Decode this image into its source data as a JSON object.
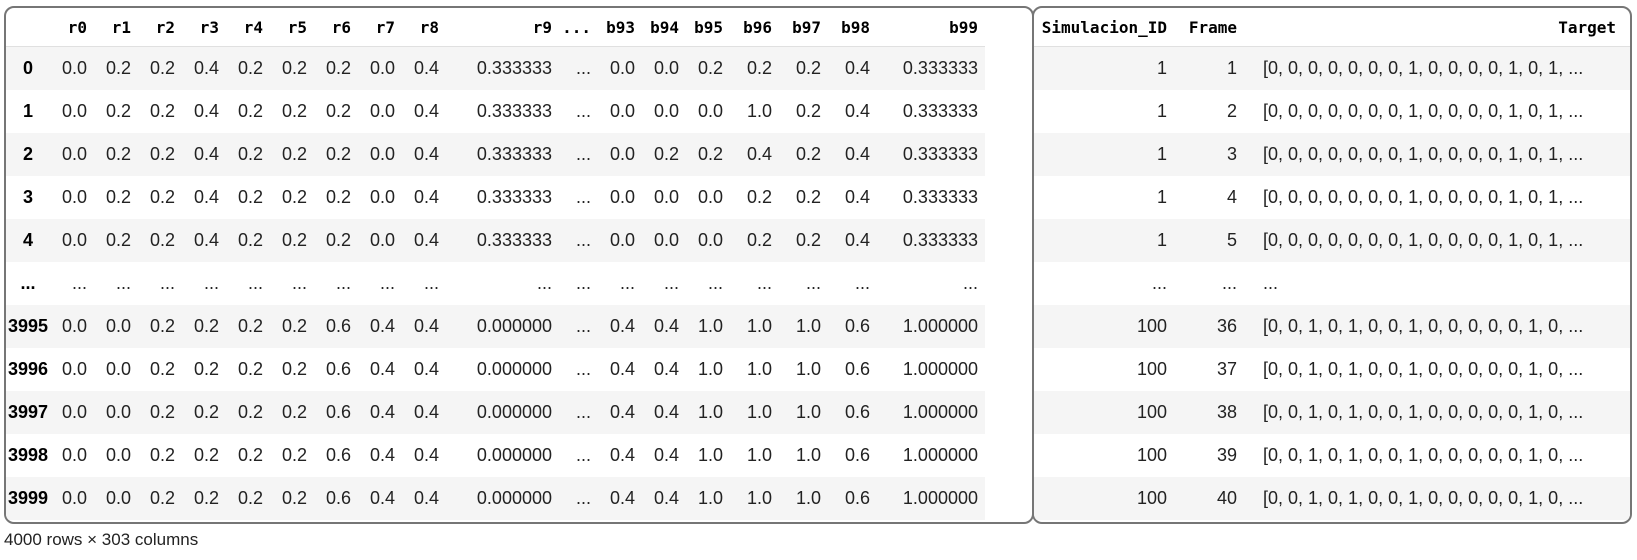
{
  "left_columns": [
    "",
    "r0",
    "r1",
    "r2",
    "r3",
    "r4",
    "r5",
    "r6",
    "r7",
    "r8",
    "r9",
    "...",
    "b93",
    "b94",
    "b95",
    "b96",
    "b97",
    "b98",
    "b99"
  ],
  "right_columns": [
    "Simulacion_ID",
    "Frame",
    "Target"
  ],
  "rows": [
    {
      "idx": "0",
      "cells": [
        "0.0",
        "0.2",
        "0.2",
        "0.4",
        "0.2",
        "0.2",
        "0.2",
        "0.0",
        "0.4",
        "0.333333",
        "...",
        "0.0",
        "0.0",
        "0.2",
        "0.2",
        "0.2",
        "0.4",
        "0.333333"
      ],
      "sim": "1",
      "frame": "1",
      "target": "[0, 0, 0, 0, 0, 0, 0, 1, 0, 0, 0, 0, 1, 0, 1, ..."
    },
    {
      "idx": "1",
      "cells": [
        "0.0",
        "0.2",
        "0.2",
        "0.4",
        "0.2",
        "0.2",
        "0.2",
        "0.0",
        "0.4",
        "0.333333",
        "...",
        "0.0",
        "0.0",
        "0.0",
        "1.0",
        "0.2",
        "0.4",
        "0.333333"
      ],
      "sim": "1",
      "frame": "2",
      "target": "[0, 0, 0, 0, 0, 0, 0, 1, 0, 0, 0, 0, 1, 0, 1, ..."
    },
    {
      "idx": "2",
      "cells": [
        "0.0",
        "0.2",
        "0.2",
        "0.4",
        "0.2",
        "0.2",
        "0.2",
        "0.0",
        "0.4",
        "0.333333",
        "...",
        "0.0",
        "0.2",
        "0.2",
        "0.4",
        "0.2",
        "0.4",
        "0.333333"
      ],
      "sim": "1",
      "frame": "3",
      "target": "[0, 0, 0, 0, 0, 0, 0, 1, 0, 0, 0, 0, 1, 0, 1, ..."
    },
    {
      "idx": "3",
      "cells": [
        "0.0",
        "0.2",
        "0.2",
        "0.4",
        "0.2",
        "0.2",
        "0.2",
        "0.0",
        "0.4",
        "0.333333",
        "...",
        "0.0",
        "0.0",
        "0.0",
        "0.2",
        "0.2",
        "0.4",
        "0.333333"
      ],
      "sim": "1",
      "frame": "4",
      "target": "[0, 0, 0, 0, 0, 0, 0, 1, 0, 0, 0, 0, 1, 0, 1, ..."
    },
    {
      "idx": "4",
      "cells": [
        "0.0",
        "0.2",
        "0.2",
        "0.4",
        "0.2",
        "0.2",
        "0.2",
        "0.0",
        "0.4",
        "0.333333",
        "...",
        "0.0",
        "0.0",
        "0.0",
        "0.2",
        "0.2",
        "0.4",
        "0.333333"
      ],
      "sim": "1",
      "frame": "5",
      "target": "[0, 0, 0, 0, 0, 0, 0, 1, 0, 0, 0, 0, 1, 0, 1, ..."
    },
    {
      "idx": "...",
      "cells": [
        "...",
        "...",
        "...",
        "...",
        "...",
        "...",
        "...",
        "...",
        "...",
        "...",
        "...",
        "...",
        "...",
        "...",
        "...",
        "...",
        "...",
        "..."
      ],
      "sim": "...",
      "frame": "...",
      "target": "..."
    },
    {
      "idx": "3995",
      "cells": [
        "0.0",
        "0.0",
        "0.2",
        "0.2",
        "0.2",
        "0.2",
        "0.6",
        "0.4",
        "0.4",
        "0.000000",
        "...",
        "0.4",
        "0.4",
        "1.0",
        "1.0",
        "1.0",
        "0.6",
        "1.000000"
      ],
      "sim": "100",
      "frame": "36",
      "target": "[0, 0, 1, 0, 1, 0, 0, 1, 0, 0, 0, 0, 0, 1, 0, ..."
    },
    {
      "idx": "3996",
      "cells": [
        "0.0",
        "0.0",
        "0.2",
        "0.2",
        "0.2",
        "0.2",
        "0.6",
        "0.4",
        "0.4",
        "0.000000",
        "...",
        "0.4",
        "0.4",
        "1.0",
        "1.0",
        "1.0",
        "0.6",
        "1.000000"
      ],
      "sim": "100",
      "frame": "37",
      "target": "[0, 0, 1, 0, 1, 0, 0, 1, 0, 0, 0, 0, 0, 1, 0, ..."
    },
    {
      "idx": "3997",
      "cells": [
        "0.0",
        "0.0",
        "0.2",
        "0.2",
        "0.2",
        "0.2",
        "0.6",
        "0.4",
        "0.4",
        "0.000000",
        "...",
        "0.4",
        "0.4",
        "1.0",
        "1.0",
        "1.0",
        "0.6",
        "1.000000"
      ],
      "sim": "100",
      "frame": "38",
      "target": "[0, 0, 1, 0, 1, 0, 0, 1, 0, 0, 0, 0, 0, 1, 0, ..."
    },
    {
      "idx": "3998",
      "cells": [
        "0.0",
        "0.0",
        "0.2",
        "0.2",
        "0.2",
        "0.2",
        "0.6",
        "0.4",
        "0.4",
        "0.000000",
        "...",
        "0.4",
        "0.4",
        "1.0",
        "1.0",
        "1.0",
        "0.6",
        "1.000000"
      ],
      "sim": "100",
      "frame": "39",
      "target": "[0, 0, 1, 0, 1, 0, 0, 1, 0, 0, 0, 0, 0, 1, 0, ..."
    },
    {
      "idx": "3999",
      "cells": [
        "0.0",
        "0.0",
        "0.2",
        "0.2",
        "0.2",
        "0.2",
        "0.6",
        "0.4",
        "0.4",
        "0.000000",
        "...",
        "0.4",
        "0.4",
        "1.0",
        "1.0",
        "1.0",
        "0.6",
        "1.000000"
      ],
      "sim": "100",
      "frame": "40",
      "target": "[0, 0, 1, 0, 1, 0, 0, 1, 0, 0, 0, 0, 0, 1, 0, ..."
    }
  ],
  "footer": "4000 rows × 303 columns"
}
